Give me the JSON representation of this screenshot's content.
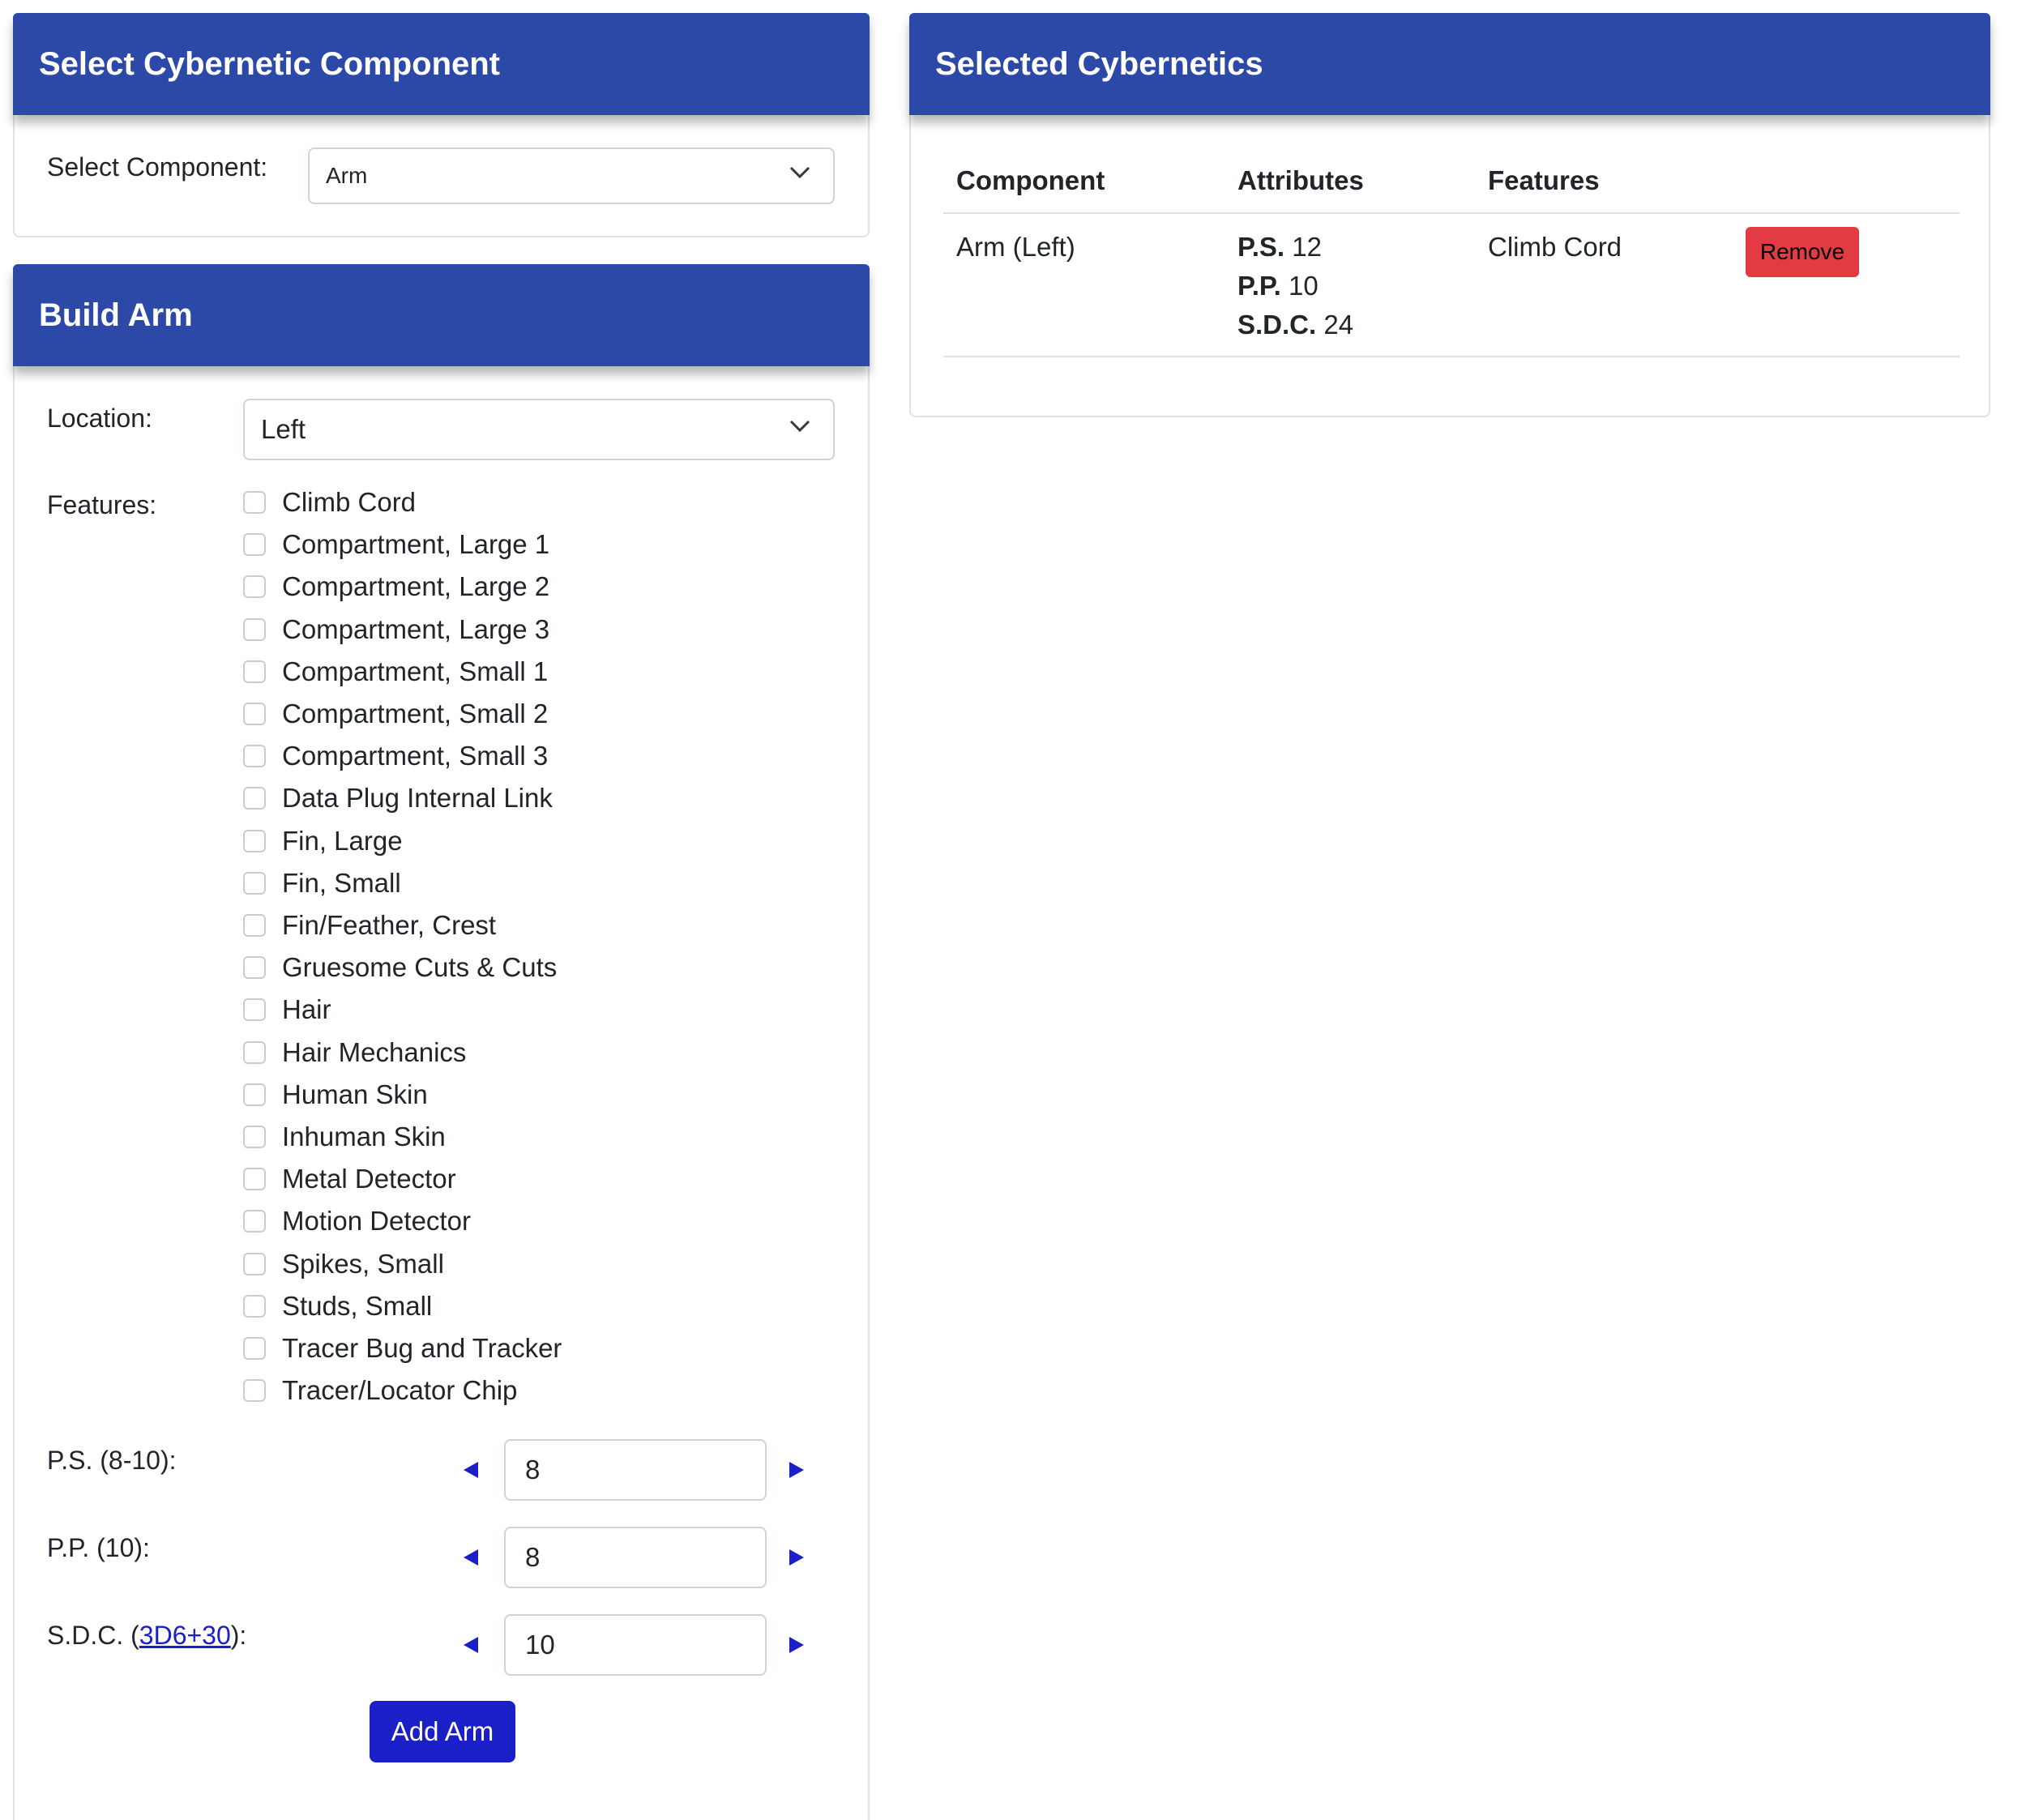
{
  "select_card": {
    "title": "Select Cybernetic Component",
    "component_label": "Select Component:",
    "component_value": "Arm"
  },
  "build_card": {
    "title": "Build Arm",
    "location_label": "Location:",
    "location_value": "Left",
    "features_label": "Features:",
    "features": [
      {
        "label": "Climb Cord",
        "checked": false
      },
      {
        "label": "Compartment, Large 1",
        "checked": false
      },
      {
        "label": "Compartment, Large 2",
        "checked": false
      },
      {
        "label": "Compartment, Large 3",
        "checked": false
      },
      {
        "label": "Compartment, Small 1",
        "checked": false
      },
      {
        "label": "Compartment, Small 2",
        "checked": false
      },
      {
        "label": "Compartment, Small 3",
        "checked": false
      },
      {
        "label": "Data Plug Internal Link",
        "checked": false
      },
      {
        "label": "Fin, Large",
        "checked": false
      },
      {
        "label": "Fin, Small",
        "checked": false
      },
      {
        "label": "Fin/Feather, Crest",
        "checked": false
      },
      {
        "label": "Gruesome Cuts & Cuts",
        "checked": false
      },
      {
        "label": "Hair",
        "checked": false
      },
      {
        "label": "Hair Mechanics",
        "checked": false
      },
      {
        "label": "Human Skin",
        "checked": false
      },
      {
        "label": "Inhuman Skin",
        "checked": false
      },
      {
        "label": "Metal Detector",
        "checked": false
      },
      {
        "label": "Motion Detector",
        "checked": false
      },
      {
        "label": "Spikes, Small",
        "checked": false
      },
      {
        "label": "Studs, Small",
        "checked": false
      },
      {
        "label": "Tracer Bug and Tracker",
        "checked": false
      },
      {
        "label": "Tracer/Locator Chip",
        "checked": false
      }
    ],
    "ps_label": "P.S. (8-10):",
    "ps_value": "8",
    "pp_label": "P.P. (10):",
    "pp_value": "8",
    "sdc_label_prefix": "S.D.C. (",
    "sdc_link": "3D6+30",
    "sdc_label_suffix": "):",
    "sdc_value": "10",
    "add_button": "Add Arm"
  },
  "selected_card": {
    "title": "Selected Cybernetics",
    "headers": {
      "component": "Component",
      "attributes": "Attributes",
      "features": "Features"
    },
    "rows": [
      {
        "component": "Arm (Left)",
        "ps_key": "P.S.",
        "ps_val": "12",
        "pp_key": "P.P.",
        "pp_val": "10",
        "sdc_key": "S.D.C.",
        "sdc_val": "24",
        "features": "Climb Cord",
        "remove_label": "Remove"
      }
    ]
  },
  "colors": {
    "header_blue": "#2d49a8",
    "button_blue": "#1a1fc8",
    "remove_red": "#e23b44"
  }
}
